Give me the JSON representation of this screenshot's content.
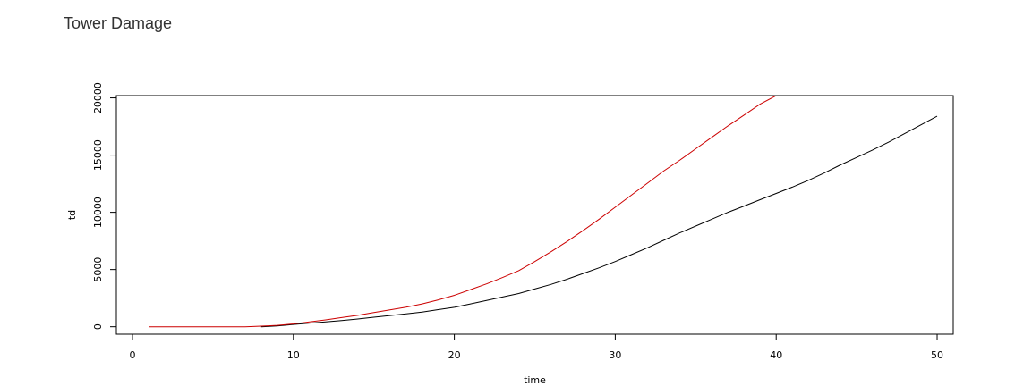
{
  "page": {
    "title": "Tower Damage"
  },
  "chart_data": {
    "type": "line",
    "title": "",
    "xlabel": "time",
    "ylabel": "td",
    "xlim": [
      -1,
      51
    ],
    "ylim": [
      -650,
      20200
    ],
    "xticks": [
      0,
      10,
      20,
      30,
      40,
      50
    ],
    "yticks": [
      0,
      5000,
      10000,
      15000,
      20000
    ],
    "grid": false,
    "legend": "none",
    "series": [
      {
        "color": "#000000",
        "x": [
          8,
          9,
          10,
          11,
          12,
          13,
          14,
          15,
          16,
          17,
          18,
          19,
          20,
          21,
          22,
          23,
          24,
          25,
          26,
          27,
          28,
          29,
          30,
          31,
          32,
          33,
          34,
          35,
          36,
          37,
          38,
          39,
          40,
          41,
          42,
          43,
          44,
          45,
          46,
          47,
          48,
          49,
          50
        ],
        "y": [
          0,
          80,
          200,
          320,
          430,
          540,
          680,
          830,
          980,
          1120,
          1280,
          1500,
          1700,
          2000,
          2300,
          2600,
          2900,
          3300,
          3700,
          4150,
          4650,
          5150,
          5700,
          6300,
          6900,
          7550,
          8200,
          8800,
          9400,
          10000,
          10550,
          11100,
          11650,
          12200,
          12800,
          13450,
          14150,
          14800,
          15450,
          16150,
          16900,
          17650,
          18400
        ]
      },
      {
        "color": "#cc0000",
        "x": [
          1,
          2,
          3,
          4,
          5,
          6,
          7,
          8,
          9,
          10,
          11,
          12,
          13,
          14,
          15,
          16,
          17,
          18,
          19,
          20,
          21,
          22,
          23,
          24,
          25,
          26,
          27,
          28,
          29,
          30,
          31,
          32,
          33,
          34,
          35,
          36,
          37,
          38,
          39,
          40
        ],
        "y": [
          0,
          0,
          0,
          0,
          0,
          0,
          0,
          50,
          120,
          250,
          420,
          600,
          800,
          1000,
          1250,
          1480,
          1720,
          2000,
          2350,
          2750,
          3250,
          3750,
          4300,
          4900,
          5700,
          6550,
          7450,
          8400,
          9400,
          10450,
          11500,
          12550,
          13600,
          14550,
          15550,
          16550,
          17550,
          18500,
          19450,
          20200
        ]
      }
    ]
  }
}
